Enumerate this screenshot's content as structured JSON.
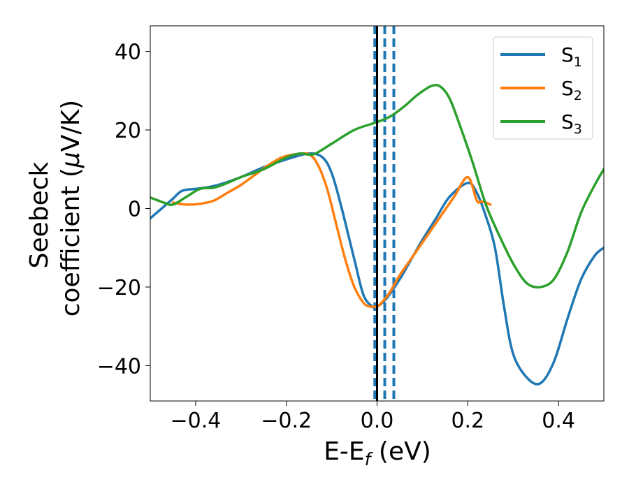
{
  "chart_data": {
    "type": "line",
    "title": "",
    "xlabel": "E-E",
    "xlabel_sub": "f",
    "xlabel_unit": " (eV)",
    "ylabel_line1": "Seebeck",
    "ylabel_line2_prefix": "coefficient  (",
    "ylabel_mu": "μ",
    "ylabel_line2_suffix": "V/K)",
    "xlim": [
      -0.5,
      0.5
    ],
    "ylim": [
      -49,
      46.5
    ],
    "grid": false,
    "legend_position": "top-right",
    "xticks": [
      {
        "value": -0.4,
        "label": "−0.4"
      },
      {
        "value": -0.2,
        "label": "−0.2"
      },
      {
        "value": 0.0,
        "label": "0.0"
      },
      {
        "value": 0.2,
        "label": "0.2"
      },
      {
        "value": 0.4,
        "label": "0.4"
      }
    ],
    "yticks": [
      {
        "value": 40,
        "label": "40"
      },
      {
        "value": 20,
        "label": "20"
      },
      {
        "value": 0,
        "label": "0"
      },
      {
        "value": -20,
        "label": "−20"
      },
      {
        "value": -40,
        "label": "−40"
      }
    ],
    "vlines": [
      {
        "x": 0.0,
        "color": "#000000",
        "style": "solid"
      },
      {
        "x": -0.005,
        "color": "#1f77b4",
        "style": "dashed"
      },
      {
        "x": 0.017,
        "color": "#1f77b4",
        "style": "dashed"
      },
      {
        "x": 0.037,
        "color": "#1f77b4",
        "style": "dashed"
      }
    ],
    "series": [
      {
        "name": "S",
        "sub": "1",
        "color": "#1f77b4",
        "x": [
          -0.5,
          -0.47,
          -0.45,
          -0.43,
          -0.4,
          -0.38,
          -0.35,
          -0.3,
          -0.25,
          -0.2,
          -0.15,
          -0.12,
          -0.1,
          -0.08,
          -0.05,
          -0.03,
          -0.01,
          0.0,
          0.02,
          0.05,
          0.08,
          0.1,
          0.13,
          0.16,
          0.2,
          0.22,
          0.24,
          0.26,
          0.28,
          0.3,
          0.33,
          0.36,
          0.39,
          0.42,
          0.45,
          0.48,
          0.5
        ],
        "y": [
          -2.5,
          0.5,
          2.5,
          4.5,
          5,
          5.3,
          6,
          8,
          10.5,
          12.5,
          14,
          13,
          9,
          1,
          -13,
          -22,
          -25,
          -25,
          -23,
          -18,
          -12,
          -8,
          -2.5,
          3,
          6.5,
          4,
          -2,
          -10,
          -25,
          -37,
          -43,
          -44.5,
          -39,
          -28,
          -18,
          -12,
          -10
        ]
      },
      {
        "name": "S",
        "sub": "2",
        "color": "#ff7f0e",
        "x": [
          -0.45,
          -0.42,
          -0.39,
          -0.36,
          -0.33,
          -0.3,
          -0.27,
          -0.24,
          -0.21,
          -0.18,
          -0.15,
          -0.13,
          -0.11,
          -0.09,
          -0.07,
          -0.05,
          -0.03,
          -0.015,
          -0.005,
          0.0,
          0.01,
          0.03,
          0.05,
          0.08,
          0.11,
          0.14,
          0.17,
          0.2,
          0.22,
          0.23,
          0.24,
          0.25
        ],
        "y": [
          1.5,
          1,
          1.2,
          2,
          4,
          6,
          8.5,
          11,
          13,
          13.8,
          13.8,
          11,
          5,
          -4,
          -13,
          -20,
          -24,
          -25,
          -25,
          -25,
          -24,
          -21,
          -17,
          -12,
          -7,
          -2,
          3,
          8,
          2,
          1.8,
          1.5,
          1
        ]
      },
      {
        "name": "S",
        "sub": "3",
        "color": "#2ca02c",
        "x": [
          -0.5,
          -0.47,
          -0.45,
          -0.42,
          -0.39,
          -0.36,
          -0.33,
          -0.3,
          -0.25,
          -0.2,
          -0.17,
          -0.14,
          -0.1,
          -0.05,
          0.0,
          0.03,
          0.06,
          0.09,
          0.12,
          0.14,
          0.16,
          0.18,
          0.21,
          0.24,
          0.27,
          0.3,
          0.33,
          0.36,
          0.39,
          0.42,
          0.45,
          0.48,
          0.5
        ],
        "y": [
          2.8,
          1.5,
          1,
          3,
          5,
          5.3,
          6.5,
          8,
          10,
          13,
          14,
          13.8,
          16.5,
          20,
          22,
          23.5,
          26,
          29,
          31.2,
          31,
          28,
          22,
          12,
          1,
          -7,
          -14,
          -19,
          -20,
          -18,
          -11,
          -1,
          6,
          10
        ]
      }
    ]
  }
}
